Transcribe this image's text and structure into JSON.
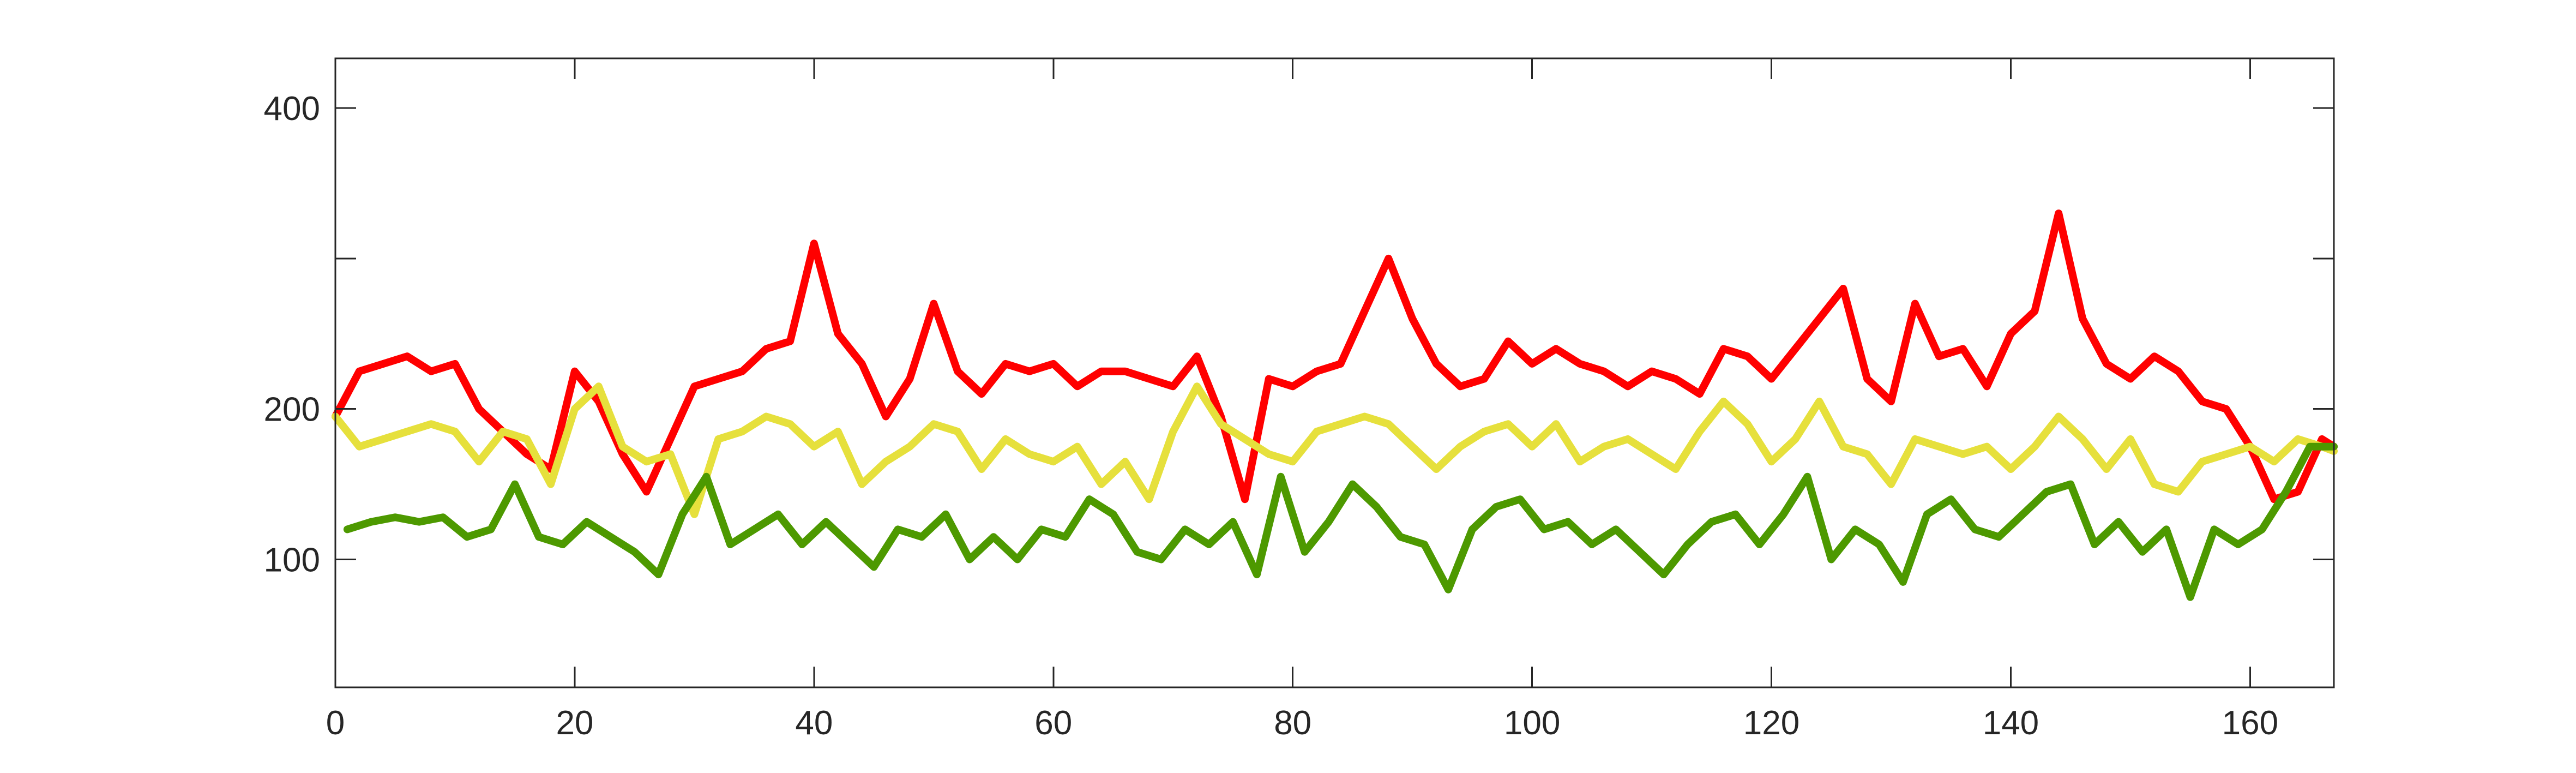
{
  "chart_data": {
    "type": "line",
    "title": "",
    "xlabel": "",
    "ylabel": "",
    "xlim": [
      0,
      167
    ],
    "ylim": [
      15,
      433
    ],
    "xticks": [
      0,
      20,
      40,
      60,
      80,
      100,
      120,
      140,
      160
    ],
    "yticks": [
      100,
      200,
      300,
      400
    ],
    "ytick_labels": [
      "100",
      "200",
      "",
      "400"
    ],
    "grid": false,
    "legend": "none",
    "series": [
      {
        "color": "#ff0000",
        "x": [
          0,
          2,
          4,
          6,
          8,
          10,
          12,
          14,
          16,
          18,
          20,
          22,
          24,
          26,
          28,
          30,
          32,
          34,
          36,
          38,
          40,
          42,
          44,
          46,
          48,
          50,
          52,
          54,
          56,
          58,
          60,
          62,
          64,
          66,
          68,
          70,
          72,
          74,
          76,
          78,
          80,
          82,
          84,
          86,
          88,
          90,
          92,
          94,
          96,
          98,
          100,
          102,
          104,
          106,
          108,
          110,
          112,
          114,
          116,
          118,
          120,
          122,
          124,
          126,
          128,
          130,
          132,
          134,
          136,
          138,
          140,
          142,
          144,
          146,
          148,
          150,
          152,
          154,
          156,
          158,
          160,
          162,
          164,
          166,
          167
        ],
        "y": [
          195,
          225,
          230,
          235,
          225,
          230,
          200,
          185,
          170,
          160,
          225,
          205,
          170,
          145,
          180,
          215,
          220,
          225,
          240,
          245,
          310,
          250,
          230,
          195,
          220,
          270,
          225,
          210,
          230,
          225,
          230,
          215,
          225,
          225,
          220,
          215,
          235,
          195,
          140,
          220,
          215,
          225,
          230,
          265,
          300,
          260,
          230,
          215,
          220,
          245,
          230,
          240,
          230,
          225,
          215,
          225,
          220,
          210,
          240,
          235,
          220,
          240,
          260,
          280,
          220,
          205,
          270,
          235,
          240,
          215,
          250,
          265,
          330,
          260,
          230,
          220,
          235,
          225,
          205,
          200,
          175,
          140,
          145,
          180,
          175
        ]
      },
      {
        "color": "#e6e03c",
        "x": [
          0,
          2,
          4,
          6,
          8,
          10,
          12,
          14,
          16,
          18,
          20,
          22,
          24,
          26,
          28,
          30,
          32,
          34,
          36,
          38,
          40,
          42,
          44,
          46,
          48,
          50,
          52,
          54,
          56,
          58,
          60,
          62,
          64,
          66,
          68,
          70,
          72,
          74,
          76,
          78,
          80,
          82,
          84,
          86,
          88,
          90,
          92,
          94,
          96,
          98,
          100,
          102,
          104,
          106,
          108,
          110,
          112,
          114,
          116,
          118,
          120,
          122,
          124,
          126,
          128,
          130,
          132,
          134,
          136,
          138,
          140,
          142,
          144,
          146,
          148,
          150,
          152,
          154,
          156,
          158,
          160,
          162,
          164,
          166,
          167
        ],
        "y": [
          195,
          175,
          180,
          185,
          190,
          185,
          165,
          185,
          180,
          150,
          200,
          215,
          175,
          165,
          170,
          130,
          180,
          185,
          195,
          190,
          175,
          185,
          150,
          165,
          175,
          190,
          185,
          160,
          180,
          170,
          165,
          175,
          150,
          165,
          140,
          185,
          215,
          190,
          180,
          170,
          165,
          185,
          190,
          195,
          190,
          175,
          160,
          175,
          185,
          190,
          175,
          190,
          165,
          175,
          180,
          170,
          160,
          185,
          205,
          190,
          165,
          180,
          205,
          175,
          170,
          150,
          180,
          175,
          170,
          175,
          160,
          175,
          195,
          180,
          160,
          180,
          150,
          145,
          165,
          170,
          175,
          165,
          180,
          175,
          172
        ]
      },
      {
        "color": "#4d9900",
        "x": [
          1,
          3,
          5,
          7,
          9,
          11,
          13,
          15,
          17,
          19,
          21,
          23,
          25,
          27,
          29,
          31,
          33,
          35,
          37,
          39,
          41,
          43,
          45,
          47,
          49,
          51,
          53,
          55,
          57,
          59,
          61,
          63,
          65,
          67,
          69,
          71,
          73,
          75,
          77,
          79,
          81,
          83,
          85,
          87,
          89,
          91,
          93,
          95,
          97,
          99,
          101,
          103,
          105,
          107,
          109,
          111,
          113,
          115,
          117,
          119,
          121,
          123,
          125,
          127,
          129,
          131,
          133,
          135,
          137,
          139,
          141,
          143,
          145,
          147,
          149,
          151,
          153,
          155,
          157,
          159,
          161,
          163,
          165,
          167
        ],
        "y": [
          120,
          125,
          128,
          125,
          128,
          115,
          120,
          150,
          115,
          110,
          125,
          115,
          105,
          90,
          130,
          155,
          110,
          120,
          130,
          110,
          125,
          110,
          95,
          120,
          115,
          130,
          100,
          115,
          100,
          120,
          115,
          140,
          130,
          105,
          100,
          120,
          110,
          125,
          90,
          155,
          105,
          125,
          150,
          135,
          115,
          110,
          80,
          120,
          135,
          140,
          120,
          125,
          110,
          120,
          105,
          90,
          110,
          125,
          130,
          110,
          130,
          155,
          100,
          120,
          110,
          85,
          130,
          140,
          120,
          115,
          130,
          145,
          150,
          110,
          125,
          105,
          120,
          75,
          120,
          110,
          120,
          145,
          175,
          175
        ]
      }
    ]
  }
}
